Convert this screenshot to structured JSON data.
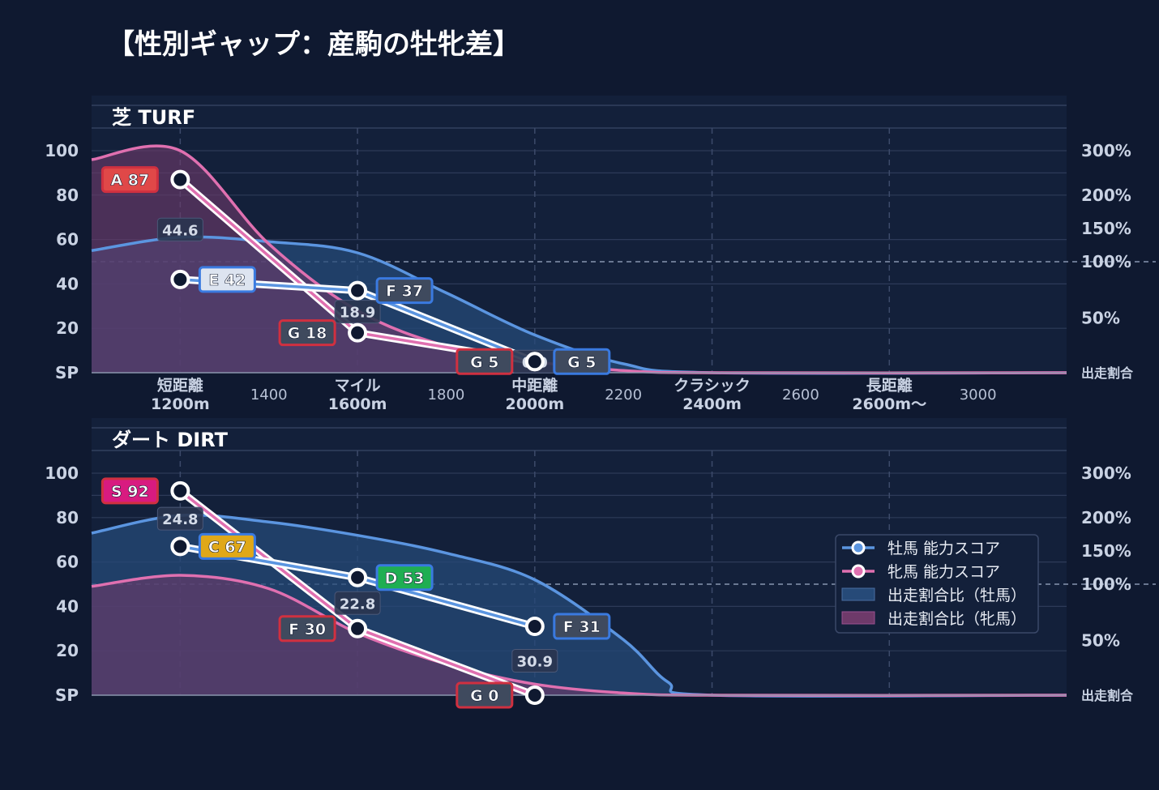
{
  "title": "【性別ギャップ：産駒の牡牝差】",
  "colors": {
    "background": "#0f1930",
    "panel": "#13203a",
    "male_line": "#5b95e0",
    "female_line": "#e070b0",
    "male_fill": "#264a78",
    "female_fill": "#6e3a6a"
  },
  "axes": {
    "y_ticks": [
      "SP",
      "20",
      "40",
      "60",
      "80",
      "100"
    ],
    "y_values": [
      0,
      20,
      40,
      60,
      80,
      100
    ],
    "ratio_ticks": [
      "出走割合",
      "50%",
      "100%",
      "150%",
      "200%",
      "300%"
    ],
    "ratio_values": [
      0,
      50,
      100,
      150,
      200,
      300
    ],
    "x_major": [
      {
        "x": 1200,
        "name": "短距離",
        "dist": "1200m"
      },
      {
        "x": 1600,
        "name": "マイル",
        "dist": "1600m"
      },
      {
        "x": 2000,
        "name": "中距離",
        "dist": "2000m"
      },
      {
        "x": 2400,
        "name": "クラシック",
        "dist": "2400m"
      },
      {
        "x": 2800,
        "name": "長距離",
        "dist": "2600m〜"
      }
    ],
    "x_minor": [
      {
        "x": 1400,
        "label": "1400"
      },
      {
        "x": 1800,
        "label": "1800"
      },
      {
        "x": 2200,
        "label": "2200"
      },
      {
        "x": 2600,
        "label": "2600"
      },
      {
        "x": 3000,
        "label": "3000"
      }
    ],
    "x_range": [
      1000,
      3200
    ],
    "y_range": [
      0,
      100
    ]
  },
  "legend": {
    "male_score": "牡馬 能力スコア",
    "female_score": "牝馬 能力スコア",
    "male_ratio": "出走割合比（牡馬）",
    "female_ratio": "出走割合比（牝馬）"
  },
  "chart_data": [
    {
      "type": "line",
      "title": "芝 TURF",
      "x": [
        1200,
        1600,
        2000
      ],
      "series": [
        {
          "name": "牡馬 能力スコア",
          "values": [
            42,
            37,
            5
          ],
          "grades": [
            "E",
            "F",
            "G"
          ],
          "badge_colors": [
            "#dde4f0",
            "#3f4a5e",
            "#3f4a5e"
          ]
        },
        {
          "name": "牝馬 能力スコア",
          "values": [
            87,
            18,
            5
          ],
          "grades": [
            "A",
            "G",
            "G"
          ],
          "badge_colors": [
            "#e04848",
            "#3f4a5e",
            "#3f4a5e"
          ]
        }
      ],
      "diffs": [
        "44.6",
        "18.9",
        "0.0"
      ],
      "ratio_series": [
        {
          "name": "出走割合比（牡馬）",
          "points": [
            [
              1000,
              55
            ],
            [
              1200,
              61
            ],
            [
              1400,
              59
            ],
            [
              1600,
              54
            ],
            [
              1800,
              36
            ],
            [
              2000,
              17
            ],
            [
              2200,
              4
            ],
            [
              2400,
              0
            ],
            [
              3200,
              0
            ]
          ]
        },
        {
          "name": "出走割合比（牝馬）",
          "points": [
            [
              1000,
              96
            ],
            [
              1200,
              100
            ],
            [
              1400,
              58
            ],
            [
              1600,
              28
            ],
            [
              1800,
              12
            ],
            [
              2000,
              5
            ],
            [
              2200,
              1
            ],
            [
              2400,
              0
            ],
            [
              3200,
              0
            ]
          ]
        }
      ]
    },
    {
      "type": "line",
      "title": "ダート DIRT",
      "x": [
        1200,
        1600,
        2000
      ],
      "series": [
        {
          "name": "牡馬 能力スコア",
          "values": [
            67,
            53,
            31
          ],
          "grades": [
            "C",
            "D",
            "F"
          ],
          "badge_colors": [
            "#e0a818",
            "#1fae52",
            "#3f4a5e"
          ]
        },
        {
          "name": "牝馬 能力スコア",
          "values": [
            92,
            30,
            0
          ],
          "grades": [
            "S",
            "F",
            "G"
          ],
          "badge_colors": [
            "#d81b80",
            "#3f4a5e",
            "#3f4a5e"
          ]
        }
      ],
      "diffs": [
        "24.8",
        "22.8",
        "30.9"
      ],
      "ratio_series": [
        {
          "name": "出走割合比（牡馬）",
          "points": [
            [
              1000,
              73
            ],
            [
              1200,
              81
            ],
            [
              1400,
              78
            ],
            [
              1600,
              72
            ],
            [
              1800,
              64
            ],
            [
              2000,
              52
            ],
            [
              2200,
              25
            ],
            [
              2300,
              6
            ],
            [
              2400,
              0
            ],
            [
              3200,
              0
            ]
          ]
        },
        {
          "name": "出走割合比（牝馬）",
          "points": [
            [
              1000,
              49
            ],
            [
              1200,
              54
            ],
            [
              1400,
              48
            ],
            [
              1600,
              28
            ],
            [
              1800,
              14
            ],
            [
              2000,
              5
            ],
            [
              2200,
              1
            ],
            [
              2400,
              0
            ],
            [
              3200,
              0
            ]
          ]
        }
      ]
    }
  ]
}
